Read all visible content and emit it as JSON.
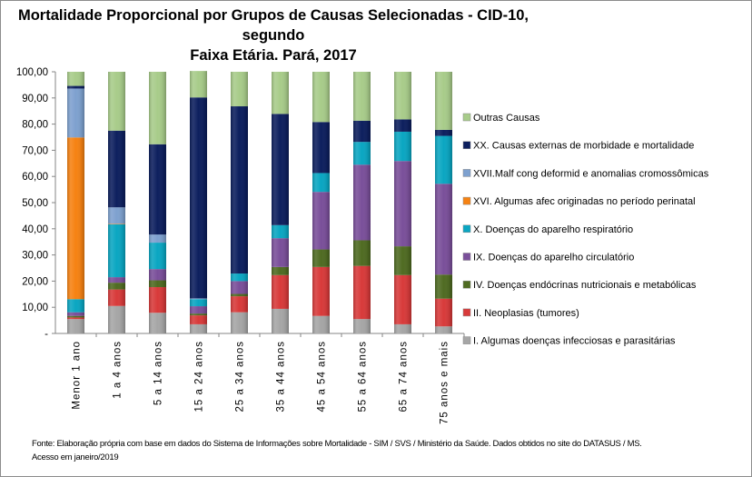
{
  "chart_data": {
    "type": "stacked-bar",
    "title_line1": "Mortalidade Proporcional por Grupos de Causas Selecionadas - CID-10, segundo",
    "title_line2": "Faixa Etária. Pará, 2017",
    "xlabel": "",
    "ylabel": "",
    "ylim": [
      0,
      100
    ],
    "yticks": [
      "-",
      "10,00",
      "20,00",
      "30,00",
      "40,00",
      "50,00",
      "60,00",
      "70,00",
      "80,00",
      "90,00",
      "100,00"
    ],
    "grid": false,
    "legend_position": "right",
    "categories": [
      "Menor 1 ano",
      "1 a 4 anos",
      "5 a 14 anos",
      "15 a 24 anos",
      "25 a 34 anos",
      "35 a 44 anos",
      "45 a 54 anos",
      "55 a 64 anos",
      "65 a 74 anos",
      "75 anos e mais"
    ],
    "series": [
      {
        "name": "I.   Algumas doenças infecciosas e parasitárias",
        "color": "#a6a6a6",
        "values": [
          5.5,
          10.5,
          7.9,
          3.5,
          8.1,
          9.4,
          6.7,
          5.5,
          3.5,
          2.7
        ]
      },
      {
        "name": "II.  Neoplasias (tumores)",
        "color": "#d83a3a",
        "values": [
          0.6,
          6.3,
          9.8,
          3.4,
          6.1,
          12.9,
          18.7,
          20.3,
          18.8,
          10.6
        ]
      },
      {
        "name": "IV.  Doenças endócrinas nutricionais e metabólicas",
        "color": "#4f6b22",
        "values": [
          0.6,
          2.6,
          2.6,
          0.7,
          0.9,
          3.1,
          6.7,
          9.8,
          11.0,
          9.2
        ]
      },
      {
        "name": "IX.  Doenças do aparelho circulatório",
        "color": "#7a4f9a",
        "values": [
          1.4,
          2.1,
          4.3,
          2.8,
          4.9,
          11.0,
          22.0,
          28.9,
          32.6,
          34.7
        ]
      },
      {
        "name": "X.   Doenças do aparelho respiratório",
        "color": "#0aa6c2",
        "values": [
          5.0,
          20.2,
          10.1,
          2.7,
          2.9,
          5.0,
          7.2,
          8.7,
          11.2,
          18.3
        ]
      },
      {
        "name": "XVI. Algumas afec originadas no período perinatal",
        "color": "#f68212",
        "values": [
          61.8,
          0.2,
          0,
          0,
          0,
          0,
          0,
          0,
          0,
          0
        ]
      },
      {
        "name": "XVII.Malf cong deformid e anomalias cromossômicas",
        "color": "#7ea1cf",
        "values": [
          18.7,
          6.3,
          3.1,
          0.3,
          0,
          0,
          0,
          0,
          0,
          0
        ]
      },
      {
        "name": "XX.  Causas externas de morbidade e mortalidade",
        "color": "#0d1f5e",
        "values": [
          1.0,
          29.3,
          34.5,
          76.8,
          63.9,
          42.5,
          19.5,
          8.1,
          4.7,
          2.3
        ]
      },
      {
        "name": "Outras Causas",
        "color": "#a8cc8a",
        "values": [
          5.4,
          22.5,
          27.7,
          10.1,
          13.2,
          16.1,
          19.2,
          18.7,
          18.2,
          22.2
        ]
      }
    ]
  },
  "source_line1": "Fonte: Elaboração própria com base em dados do  Sistema de Informações sobre Mortalidade - SIM / SVS / Ministério da Saúde. Dados obtidos no site do DATASUS / MS.",
  "source_line2": "Acesso em janeiro/2019"
}
